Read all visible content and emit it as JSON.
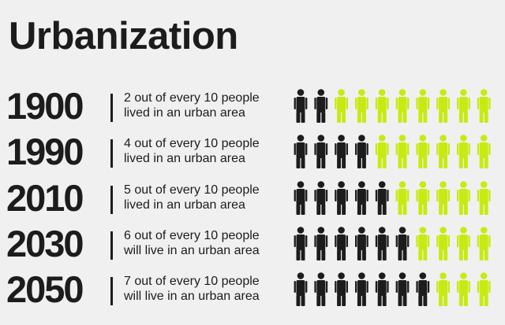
{
  "title": "Urbanization",
  "colors": {
    "urban": "#1c1c1c",
    "rural": "#c8ea12",
    "background": "#f0f0f0"
  },
  "icon": "person-icon",
  "chart_data": {
    "type": "pictogram",
    "title": "Urbanization",
    "total_per_row": 10,
    "rows": [
      {
        "year": "1900",
        "urban": 2,
        "line1": "2 out of every 10 people",
        "line2": "lived in an urban area"
      },
      {
        "year": "1990",
        "urban": 4,
        "line1": "4 out of every 10 people",
        "line2": "lived in an urban area"
      },
      {
        "year": "2010",
        "urban": 5,
        "line1": "5 out of every 10 people",
        "line2": "lived in an urban area"
      },
      {
        "year": "2030",
        "urban": 6,
        "line1": "6 out of every 10 people",
        "line2": "will live in an urban area"
      },
      {
        "year": "2050",
        "urban": 7,
        "line1": "7 out of every 10 people",
        "line2": "will live in an urban area"
      }
    ]
  }
}
